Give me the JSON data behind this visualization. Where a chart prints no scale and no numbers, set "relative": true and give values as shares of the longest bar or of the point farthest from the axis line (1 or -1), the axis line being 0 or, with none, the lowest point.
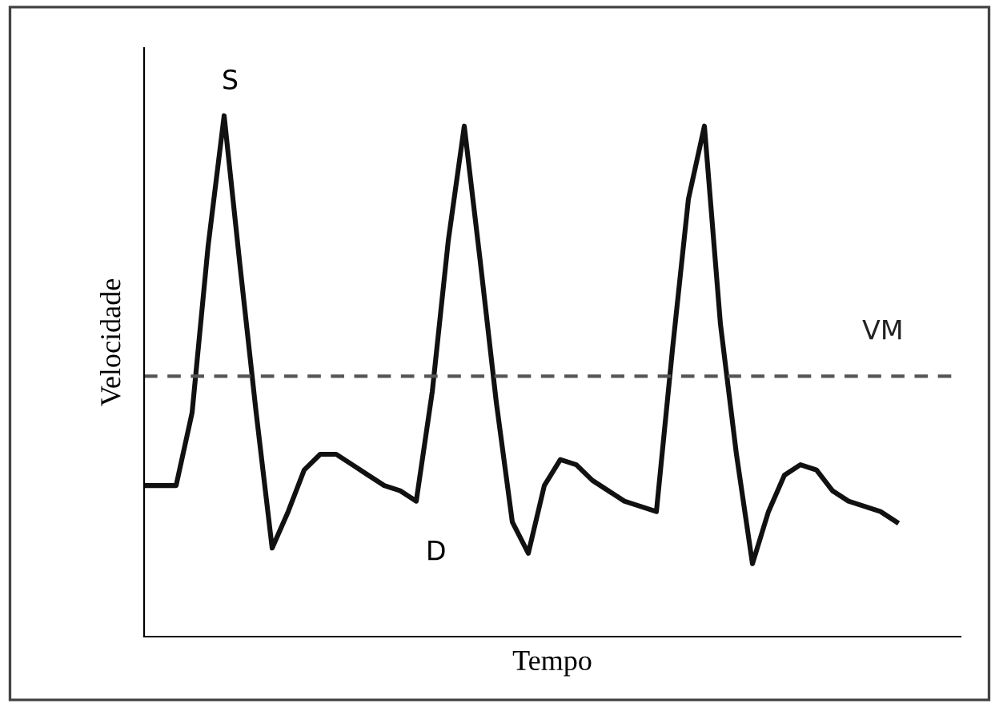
{
  "chart_data": {
    "type": "line",
    "relative": true,
    "xlabel": "Tempo",
    "ylabel": "Velocidade",
    "categories": [
      null,
      null,
      null,
      null,
      null,
      null,
      null,
      null,
      null,
      null,
      null,
      null,
      null,
      null,
      null,
      null,
      null,
      null,
      null,
      null,
      null,
      null,
      null,
      null,
      null,
      null,
      null,
      null,
      null,
      null,
      null,
      null,
      null,
      null,
      null,
      null,
      null,
      null,
      null,
      null,
      null,
      null,
      null,
      null,
      null,
      null,
      null,
      null
    ],
    "tick_labels": false,
    "series": [
      {
        "color": "#111111",
        "values": [
          0.29,
          0.29,
          0.29,
          0.43,
          0.75,
          1.0,
          0.71,
          0.43,
          0.17,
          0.24,
          0.32,
          0.35,
          0.35,
          0.33,
          0.31,
          0.29,
          0.28,
          0.26,
          0.47,
          0.76,
          0.98,
          0.72,
          0.45,
          0.22,
          0.16,
          0.29,
          0.34,
          0.33,
          0.3,
          0.28,
          0.26,
          0.25,
          0.24,
          0.55,
          0.84,
          0.98,
          0.6,
          0.35,
          0.14,
          0.24,
          0.31,
          0.33,
          0.32,
          0.28,
          0.26,
          0.25,
          0.24,
          0.22
        ]
      }
    ],
    "ref_lines": [
      {
        "axis": "y",
        "value": 0.5,
        "label": "VM",
        "color": "#555555",
        "line_style": "dashed"
      }
    ],
    "annotations": [
      "S",
      "D"
    ],
    "marker": "none",
    "line_style": "solid"
  }
}
